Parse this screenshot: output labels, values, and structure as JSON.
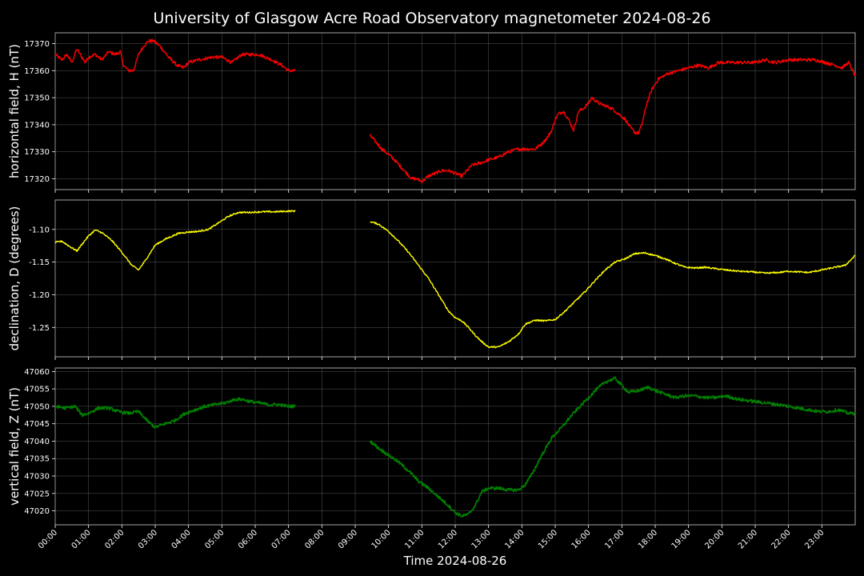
{
  "chart_data": {
    "type": "line",
    "title": "University of Glasgow Acre Road Observatory magnetometer 2024-08-26",
    "xlabel": "Time 2024-08-26",
    "x_ticks": [
      "00:00",
      "01:00",
      "02:00",
      "03:00",
      "04:00",
      "05:00",
      "06:00",
      "07:00",
      "08:00",
      "09:00",
      "10:00",
      "11:00",
      "12:00",
      "13:00",
      "14:00",
      "15:00",
      "16:00",
      "17:00",
      "18:00",
      "19:00",
      "20:00",
      "21:00",
      "22:00",
      "23:00"
    ],
    "xlim_hours": [
      0,
      24
    ],
    "grid": true,
    "data_gap_hours": [
      7.2,
      9.45
    ],
    "panels": [
      {
        "ylabel": "horizontal field, H (nT)",
        "color": "#ff0000",
        "ylim": [
          17316,
          17374
        ],
        "y_ticks": [
          17320,
          17330,
          17340,
          17350,
          17360,
          17370
        ],
        "tick_decimals": 0,
        "noise": 0.6,
        "series": [
          {
            "name": "H",
            "x": [
              0,
              0.2,
              0.35,
              0.5,
              0.65,
              0.9,
              1.0,
              1.2,
              1.4,
              1.6,
              1.8,
              1.95,
              2.05,
              2.2,
              2.35,
              2.5,
              2.65,
              2.8,
              2.95,
              3.15,
              3.4,
              3.65,
              3.85,
              4.0,
              4.3,
              4.7,
              5.0,
              5.3,
              5.6,
              5.8,
              6.1,
              6.5,
              6.8,
              7.0,
              7.2
            ],
            "y": [
              17366,
              17364,
              17366,
              17363,
              17368,
              17363,
              17365,
              17366,
              17364,
              17367,
              17366,
              17367,
              17362,
              17360,
              17360,
              17366,
              17369,
              17371,
              17371,
              17369,
              17365,
              17362,
              17361,
              17363,
              17364,
              17365,
              17365,
              17363,
              17366,
              17366,
              17366,
              17364,
              17362,
              17360,
              17360
            ]
          },
          {
            "name": "H",
            "x": [
              9.45,
              9.8,
              10.1,
              10.4,
              10.7,
              10.85,
              11.0,
              11.2,
              11.4,
              11.6,
              11.8,
              12.0,
              12.2,
              12.5,
              12.8,
              13.0,
              13.3,
              13.6,
              13.9,
              14.1,
              14.4,
              14.6,
              14.75,
              14.9,
              15.0,
              15.1,
              15.25,
              15.4,
              15.55,
              15.7,
              15.85,
              16.0,
              16.1,
              16.3,
              16.5,
              16.7,
              16.9,
              17.1,
              17.25,
              17.4,
              17.5,
              17.6,
              17.75,
              17.9,
              18.1,
              18.4,
              18.7,
              19.0,
              19.3,
              19.6,
              19.9,
              20.3,
              20.7,
              21.0,
              21.3,
              21.6,
              22.0,
              22.4,
              22.8,
              23.1,
              23.4,
              23.6,
              23.8,
              24.0
            ],
            "y": [
              17336,
              17331,
              17328,
              17324,
              17320,
              17320,
              17319,
              17321,
              17322,
              17323,
              17323,
              17322,
              17321,
              17325,
              17326,
              17327,
              17328,
              17330,
              17331,
              17331,
              17331,
              17333,
              17335,
              17338,
              17342,
              17344,
              17345,
              17342,
              17338,
              17345,
              17346,
              17348,
              17350,
              17348,
              17347,
              17346,
              17344,
              17342,
              17339,
              17337,
              17337,
              17340,
              17348,
              17353,
              17357,
              17359,
              17360,
              17361,
              17362,
              17361,
              17363,
              17363,
              17363,
              17363,
              17364,
              17363,
              17364,
              17364,
              17364,
              17363,
              17362,
              17361,
              17363,
              17358
            ]
          }
        ]
      },
      {
        "ylabel": "declination, D (degrees)",
        "color": "#ffff00",
        "ylim": [
          -1.295,
          -1.055
        ],
        "y_ticks": [
          -1.25,
          -1.2,
          -1.15,
          -1.1
        ],
        "tick_decimals": 2,
        "noise": 0.0012,
        "series": [
          {
            "name": "D",
            "x": [
              0,
              0.2,
              0.4,
              0.65,
              0.8,
              1.0,
              1.2,
              1.4,
              1.7,
              2.0,
              2.3,
              2.5,
              2.7,
              3.0,
              3.3,
              3.7,
              4.0,
              4.3,
              4.6,
              4.9,
              5.2,
              5.5,
              5.8,
              6.2,
              6.6,
              7.0,
              7.2
            ],
            "y": [
              -1.12,
              -1.118,
              -1.125,
              -1.133,
              -1.123,
              -1.11,
              -1.101,
              -1.105,
              -1.117,
              -1.135,
              -1.155,
              -1.162,
              -1.148,
              -1.124,
              -1.115,
              -1.106,
              -1.104,
              -1.103,
              -1.1,
              -1.09,
              -1.08,
              -1.074,
              -1.074,
              -1.073,
              -1.073,
              -1.072,
              -1.072
            ]
          },
          {
            "name": "D",
            "x": [
              9.45,
              9.7,
              10.0,
              10.3,
              10.6,
              10.9,
              11.2,
              11.5,
              11.8,
              12.0,
              12.2,
              12.4,
              12.6,
              12.8,
              13.0,
              13.3,
              13.6,
              13.9,
              14.1,
              14.4,
              14.7,
              15.0,
              15.3,
              15.6,
              15.9,
              16.2,
              16.5,
              16.8,
              17.1,
              17.4,
              17.7,
              18.0,
              18.3,
              18.6,
              18.9,
              19.2,
              19.5,
              19.8,
              20.1,
              20.5,
              20.9,
              21.3,
              21.7,
              22.0,
              22.3,
              22.6,
              23.0,
              23.4,
              23.7,
              24.0
            ],
            "y": [
              -1.088,
              -1.092,
              -1.103,
              -1.118,
              -1.135,
              -1.155,
              -1.175,
              -1.2,
              -1.225,
              -1.235,
              -1.24,
              -1.25,
              -1.262,
              -1.272,
              -1.28,
              -1.28,
              -1.272,
              -1.26,
              -1.245,
              -1.239,
              -1.24,
              -1.238,
              -1.225,
              -1.21,
              -1.195,
              -1.178,
              -1.162,
              -1.15,
              -1.145,
              -1.137,
              -1.136,
              -1.14,
              -1.145,
              -1.152,
              -1.158,
              -1.159,
              -1.158,
              -1.16,
              -1.162,
              -1.164,
              -1.165,
              -1.167,
              -1.166,
              -1.164,
              -1.165,
              -1.166,
              -1.162,
              -1.158,
              -1.155,
              -1.14
            ]
          }
        ]
      },
      {
        "ylabel": "vertical field, Z (nT)",
        "color": "#008000",
        "ylim": [
          47016,
          47061
        ],
        "y_ticks": [
          47020,
          47025,
          47030,
          47035,
          47040,
          47045,
          47050,
          47055,
          47060
        ],
        "tick_decimals": 0,
        "noise": 0.45,
        "series": [
          {
            "name": "Z",
            "x": [
              0,
              0.3,
              0.6,
              0.8,
              1.0,
              1.3,
              1.6,
              1.9,
              2.2,
              2.5,
              2.8,
              3.0,
              3.3,
              3.6,
              3.9,
              4.2,
              4.5,
              4.8,
              5.1,
              5.4,
              5.6,
              5.8,
              6.1,
              6.4,
              6.7,
              7.0,
              7.2
            ],
            "y": [
              47050,
              47049.5,
              47050,
              47047.5,
              47048,
              47049.5,
              47049.5,
              47048.5,
              47048,
              47048.5,
              47045.5,
              47044,
              47045,
              47046,
              47048,
              47049,
              47050,
              47050.5,
              47051,
              47052,
              47052,
              47051.5,
              47051,
              47050.5,
              47050.5,
              47050,
              47050
            ]
          },
          {
            "name": "Z",
            "x": [
              9.45,
              9.7,
              10.0,
              10.3,
              10.6,
              10.9,
              11.2,
              11.5,
              11.8,
              12.0,
              12.2,
              12.4,
              12.6,
              12.8,
              13.0,
              13.3,
              13.6,
              13.9,
              14.1,
              14.3,
              14.6,
              14.9,
              15.2,
              15.5,
              15.8,
              16.0,
              16.2,
              16.5,
              16.8,
              17.0,
              17.2,
              17.5,
              17.8,
              18.0,
              18.3,
              18.6,
              18.9,
              19.2,
              19.5,
              19.8,
              20.1,
              20.5,
              20.9,
              21.3,
              21.7,
              22.0,
              22.3,
              22.6,
              22.9,
              23.2,
              23.5,
              23.8,
              24.0
            ],
            "y": [
              47040,
              47038,
              47036,
              47034,
              47031.5,
              47028.5,
              47026.5,
              47024,
              47021.5,
              47019.5,
              47018.5,
              47019,
              47021.5,
              47025.5,
              47026.5,
              47026.5,
              47026,
              47026,
              47027.5,
              47030.5,
              47036,
              47041,
              47044,
              47047.5,
              47050.5,
              47052.5,
              47054.5,
              47057,
              47058,
              47056,
              47054,
              47054.5,
              47055.5,
              47054.5,
              47053.5,
              47052.5,
              47053,
              47053,
              47052.5,
              47052.5,
              47053,
              47052,
              47051.5,
              47051,
              47050.5,
              47050,
              47049.5,
              47049,
              47048.5,
              47048.5,
              47049,
              47048,
              47048
            ]
          }
        ]
      }
    ]
  }
}
